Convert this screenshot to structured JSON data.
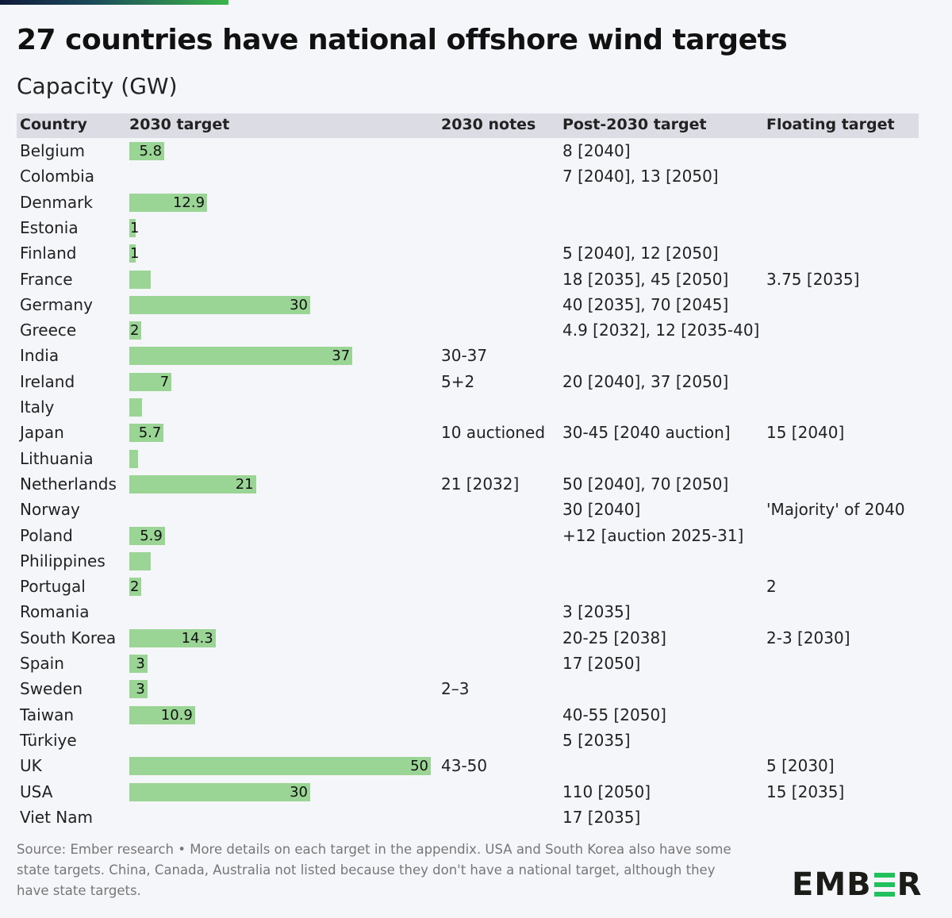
{
  "title": "27 countries have national offshore wind targets",
  "subtitle": "Capacity (GW)",
  "columns": [
    "Country",
    "2030 target",
    "2030 notes",
    "Post-2030 target",
    "Floating target"
  ],
  "colors": {
    "bar": "#9ad595",
    "header_bg": "#dcdde4",
    "background": "#f4f6fa",
    "logo_accent": "#20c05c"
  },
  "chart_data": {
    "type": "table",
    "title": "27 countries have national offshore wind targets",
    "subtitle": "Capacity (GW)",
    "bar_column": "2030 target",
    "xlim": [
      0,
      50
    ],
    "rows": [
      {
        "country": "Belgium",
        "target_2030": 5.8,
        "label": "5.8",
        "notes": "",
        "post_2030": "8 [2040]",
        "floating": ""
      },
      {
        "country": "Colombia",
        "target_2030": null,
        "label": "",
        "notes": "",
        "post_2030": "7 [2040], 13 [2050]",
        "floating": ""
      },
      {
        "country": "Denmark",
        "target_2030": 12.9,
        "label": "12.9",
        "notes": "",
        "post_2030": "",
        "floating": ""
      },
      {
        "country": "Estonia",
        "target_2030": 1,
        "label": "1",
        "notes": "",
        "post_2030": "",
        "floating": ""
      },
      {
        "country": "Finland",
        "target_2030": 1,
        "label": "1",
        "notes": "",
        "post_2030": "5 [2040], 12 [2050]",
        "floating": ""
      },
      {
        "country": "France",
        "target_2030": 3.6,
        "label": "",
        "notes": "",
        "post_2030": "18 [2035], 45 [2050]",
        "floating": "3.75 [2035]"
      },
      {
        "country": "Germany",
        "target_2030": 30,
        "label": "30",
        "notes": "",
        "post_2030": "40 [2035], 70 [2045]",
        "floating": ""
      },
      {
        "country": "Greece",
        "target_2030": 2,
        "label": "2",
        "notes": "",
        "post_2030": "4.9 [2032], 12 [2035-40]",
        "floating": ""
      },
      {
        "country": "India",
        "target_2030": 37,
        "label": "37",
        "notes": "30-37",
        "post_2030": "",
        "floating": ""
      },
      {
        "country": "Ireland",
        "target_2030": 7,
        "label": "7",
        "notes": "5+2",
        "post_2030": "20 [2040], 37 [2050]",
        "floating": ""
      },
      {
        "country": "Italy",
        "target_2030": 2.1,
        "label": "",
        "notes": "",
        "post_2030": "",
        "floating": ""
      },
      {
        "country": "Japan",
        "target_2030": 5.7,
        "label": "5.7",
        "notes": "10 auctioned",
        "post_2030": "30-45 [2040 auction]",
        "floating": "15 [2040]"
      },
      {
        "country": "Lithuania",
        "target_2030": 1.4,
        "label": "",
        "notes": "",
        "post_2030": "",
        "floating": ""
      },
      {
        "country": "Netherlands",
        "target_2030": 21,
        "label": "21",
        "notes": "21 [2032]",
        "post_2030": "50 [2040], 70 [2050]",
        "floating": ""
      },
      {
        "country": "Norway",
        "target_2030": null,
        "label": "",
        "notes": "",
        "post_2030": "30 [2040]",
        "floating": "'Majority' of 2040"
      },
      {
        "country": "Poland",
        "target_2030": 5.9,
        "label": "5.9",
        "notes": "",
        "post_2030": "+12 [auction 2025-31]",
        "floating": ""
      },
      {
        "country": "Philippines",
        "target_2030": 3.5,
        "label": "",
        "notes": "",
        "post_2030": "",
        "floating": ""
      },
      {
        "country": "Portugal",
        "target_2030": 2,
        "label": "2",
        "notes": "",
        "post_2030": "",
        "floating": "2"
      },
      {
        "country": "Romania",
        "target_2030": null,
        "label": "",
        "notes": "",
        "post_2030": "3 [2035]",
        "floating": ""
      },
      {
        "country": "South Korea",
        "target_2030": 14.3,
        "label": "14.3",
        "notes": "",
        "post_2030": "20-25 [2038]",
        "floating": "2-3 [2030]"
      },
      {
        "country": "Spain",
        "target_2030": 3,
        "label": "3",
        "notes": "",
        "post_2030": "17 [2050]",
        "floating": ""
      },
      {
        "country": "Sweden",
        "target_2030": 3,
        "label": "3",
        "notes": "2–3",
        "post_2030": "",
        "floating": ""
      },
      {
        "country": "Taiwan",
        "target_2030": 10.9,
        "label": "10.9",
        "notes": "",
        "post_2030": "40-55 [2050]",
        "floating": ""
      },
      {
        "country": "Türkiye",
        "target_2030": null,
        "label": "",
        "notes": "",
        "post_2030": "5 [2035]",
        "floating": ""
      },
      {
        "country": "UK",
        "target_2030": 50,
        "label": "50",
        "notes": "43-50",
        "post_2030": "",
        "floating": "5 [2030]"
      },
      {
        "country": "USA",
        "target_2030": 30,
        "label": "30",
        "notes": "",
        "post_2030": "110 [2050]",
        "floating": "15 [2035]"
      },
      {
        "country": "Viet Nam",
        "target_2030": null,
        "label": "",
        "notes": "",
        "post_2030": "17 [2035]",
        "floating": ""
      }
    ]
  },
  "footer": "Source: Ember research • More details on each target in the appendix. USA and South Korea also have some state targets. China, Canada, Australia not listed because they don't have a national target, although they have state targets.",
  "logo": {
    "pre": "EMB",
    "post": "R",
    "full": "EMBER"
  }
}
